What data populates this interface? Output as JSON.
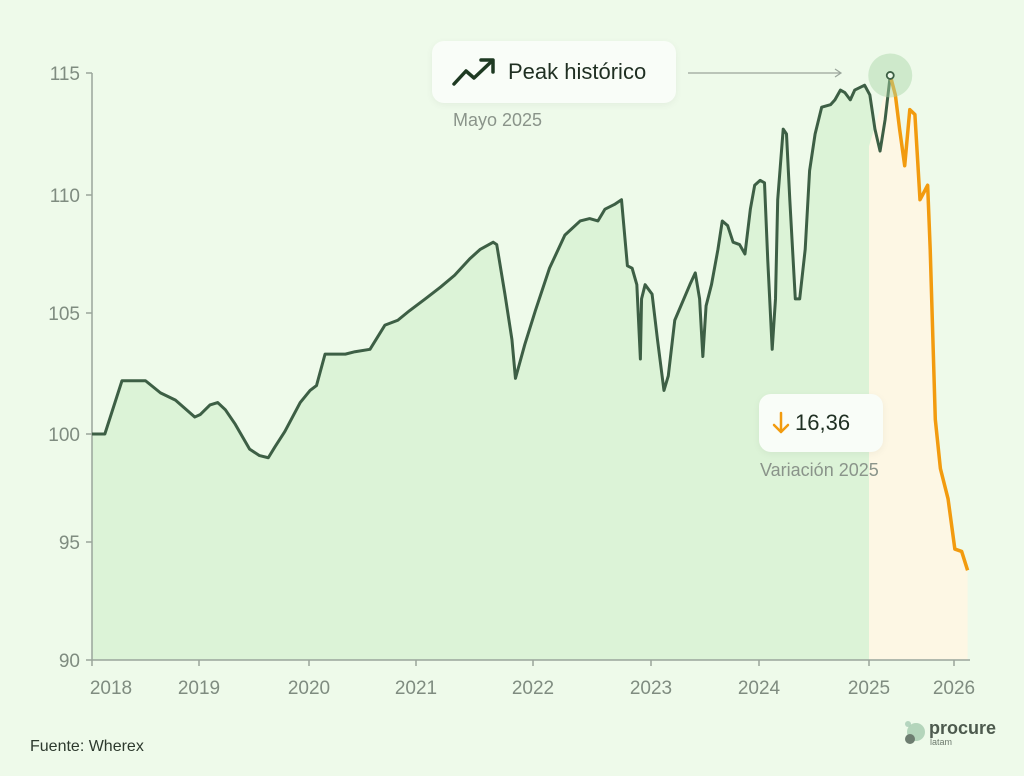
{
  "chart_data": {
    "type": "area",
    "title": "",
    "xlabel": "",
    "ylabel": "",
    "ylim": [
      90,
      115
    ],
    "xlim": [
      2018,
      2026.2
    ],
    "yticks": [
      "90",
      "95",
      "100",
      "105",
      "110",
      "115"
    ],
    "xticks": [
      "2018",
      "2019",
      "2020",
      "2021",
      "2022",
      "2023",
      "2024",
      "2025",
      "2026"
    ],
    "grid": false,
    "series": [
      {
        "name": "histórico",
        "color": "#3d5f45",
        "fill": "#dcf3d7",
        "x": [
          2018.0,
          2018.12,
          2018.28,
          2018.5,
          2018.64,
          2018.78,
          2018.96,
          2019.01,
          2019.1,
          2019.17,
          2019.24,
          2019.33,
          2019.46,
          2019.55,
          2019.63,
          2019.69,
          2019.78,
          2019.92,
          2020.01,
          2020.07,
          2020.15,
          2020.24,
          2020.34,
          2020.43,
          2020.57,
          2020.71,
          2020.83,
          2020.94,
          2021.08,
          2021.21,
          2021.33,
          2021.46,
          2021.55,
          2021.66,
          2021.69,
          2021.76,
          2021.82,
          2021.85,
          2021.93,
          2022.02,
          2022.14,
          2022.27,
          2022.4,
          2022.48,
          2022.55,
          2022.61,
          2022.69,
          2022.75,
          2022.8,
          2022.84,
          2022.88,
          2022.91,
          2022.92,
          2022.95,
          2023.01,
          2023.06,
          2023.12,
          2023.16,
          2023.22,
          2023.36,
          2023.41,
          2023.45,
          2023.48,
          2023.51,
          2023.56,
          2023.62,
          2023.66,
          2023.71,
          2023.76,
          2023.82,
          2023.87,
          2023.92,
          2023.96,
          2024.01,
          2024.05,
          2024.08,
          2024.12,
          2024.15,
          2024.17,
          2024.22,
          2024.25,
          2024.28,
          2024.33,
          2024.37,
          2024.42,
          2024.46,
          2024.51,
          2024.57,
          2024.65,
          2024.69,
          2024.74,
          2024.78,
          2024.83,
          2024.87,
          2024.96,
          2025.01,
          2025.07,
          2025.13,
          2025.19,
          2025.25
        ],
        "y": [
          100.0,
          100.0,
          102.2,
          102.2,
          101.7,
          101.4,
          100.7,
          100.8,
          101.2,
          101.3,
          101.0,
          100.4,
          99.3,
          99.0,
          98.9,
          99.4,
          100.1,
          101.3,
          101.8,
          102.0,
          103.3,
          103.3,
          103.3,
          103.4,
          103.5,
          104.5,
          104.7,
          105.1,
          105.6,
          106.1,
          106.6,
          107.3,
          107.7,
          108.0,
          107.9,
          105.8,
          103.9,
          102.3,
          103.7,
          105.1,
          106.9,
          108.3,
          108.9,
          109.0,
          108.9,
          109.4,
          109.6,
          109.8,
          107.0,
          106.9,
          106.2,
          103.1,
          105.6,
          106.2,
          105.8,
          103.9,
          101.8,
          102.4,
          104.7,
          106.2,
          106.7,
          105.6,
          103.2,
          105.3,
          106.2,
          107.7,
          108.9,
          108.7,
          108.0,
          107.9,
          107.5,
          109.4,
          110.4,
          110.6,
          110.5,
          107.2,
          103.5,
          105.6,
          109.8,
          112.7,
          112.5,
          109.8,
          105.6,
          105.6,
          107.7,
          111.0,
          112.5,
          113.6,
          113.7,
          113.9,
          114.3,
          114.2,
          113.9,
          114.3,
          114.5,
          114.1,
          112.7,
          111.8,
          113.1,
          114.9
        ]
      },
      {
        "name": "2025",
        "color": "#f29b0f",
        "fill": "#fdf7e4",
        "x": [
          2025.25,
          2025.31,
          2025.36,
          2025.42,
          2025.48,
          2025.54,
          2025.6,
          2025.66,
          2025.69,
          2025.72,
          2025.78,
          2025.84,
          2025.93,
          2026.01,
          2026.09,
          2026.16
        ],
        "y": [
          114.9,
          114.1,
          112.7,
          111.2,
          113.5,
          113.3,
          109.8,
          110.2,
          110.4,
          107.7,
          100.6,
          98.4,
          97.0,
          94.7,
          94.6,
          93.8
        ]
      }
    ],
    "annotations": {
      "peak": {
        "label": "Peak histórico",
        "sublabel": "Mayo 2025",
        "x": 2025.25,
        "y": 114.9,
        "icon": "trending-up-icon"
      },
      "variation": {
        "value": "16,36",
        "sublabel": "Variación 2025",
        "icon": "arrow-down-icon",
        "color": "#f29b0f"
      }
    }
  },
  "footer": {
    "source": "Fuente: Wherex",
    "logo_word": "procure",
    "logo_sub": "latam"
  }
}
